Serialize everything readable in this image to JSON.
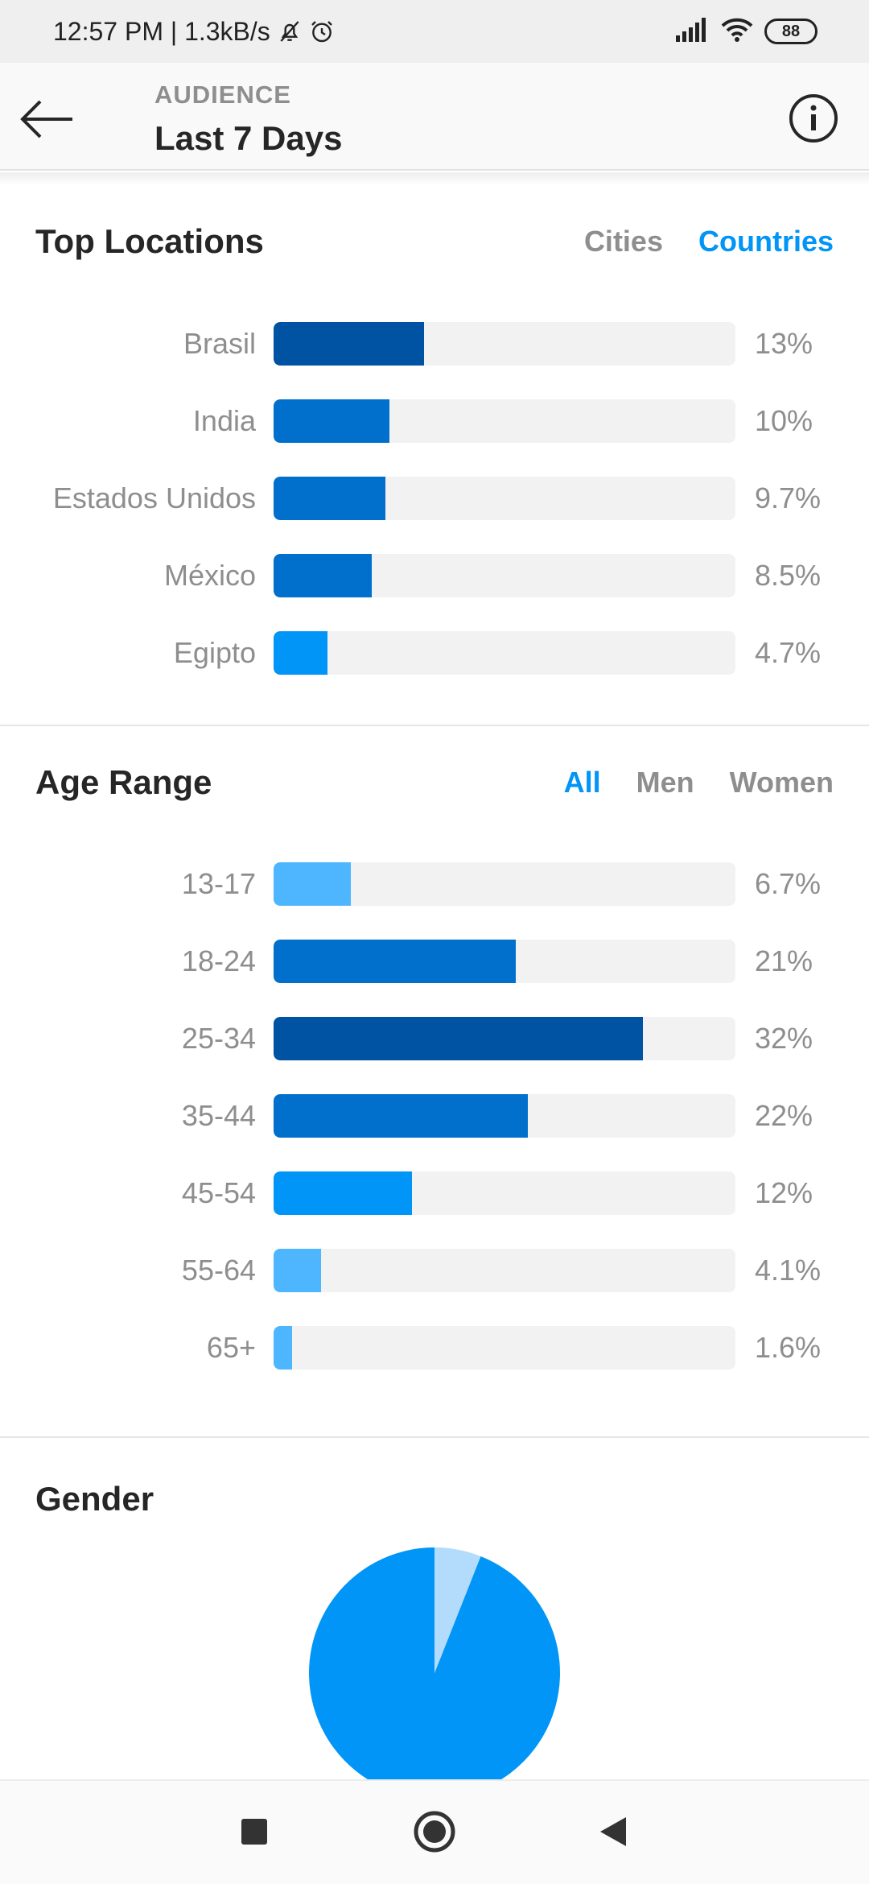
{
  "status_bar": {
    "time_speed": "12:57 PM | 1.3kB/s",
    "battery": "88",
    "icons": [
      "mute-bell-icon",
      "alarm-icon",
      "signal-icon",
      "wifi-icon",
      "battery-icon"
    ]
  },
  "app_bar": {
    "overline": "AUDIENCE",
    "title": "Last 7 Days",
    "back_icon": "arrow-left-icon",
    "info_icon": "info-icon"
  },
  "top_locations": {
    "title": "Top Locations",
    "tabs": [
      {
        "label": "Cities",
        "active": false
      },
      {
        "label": "Countries",
        "active": true
      }
    ]
  },
  "age_range": {
    "title": "Age Range",
    "tabs": [
      {
        "label": "All",
        "active": true
      },
      {
        "label": "Men",
        "active": false
      },
      {
        "label": "Women",
        "active": false
      }
    ]
  },
  "gender": {
    "title": "Gender"
  },
  "nav_bar": {
    "icons": [
      "recents-square-icon",
      "home-circle-icon",
      "back-triangle-icon"
    ]
  },
  "colors": {
    "accent": "#0095f6",
    "bar_darkest": "#0052a3",
    "bar_dark": "#0070cc",
    "bar_mid": "#0095f6",
    "bar_light": "#4db6ff",
    "pie_main": "#0095f6",
    "pie_minor": "#b3dcfc"
  },
  "chart_data": [
    {
      "type": "bar",
      "title": "Top Locations",
      "categories": [
        "Brasil",
        "India",
        "Estados Unidos",
        "México",
        "Egipto"
      ],
      "values": [
        13,
        10,
        9.7,
        8.5,
        4.7
      ],
      "value_labels": [
        "13%",
        "10%",
        "9.7%",
        "8.5%",
        "4.7%"
      ],
      "ylim": [
        0,
        100
      ]
    },
    {
      "type": "bar",
      "title": "Age Range",
      "categories": [
        "13-17",
        "18-24",
        "25-34",
        "35-44",
        "45-54",
        "55-64",
        "65+"
      ],
      "values": [
        6.7,
        21,
        32,
        22,
        12,
        4.1,
        1.6
      ],
      "value_labels": [
        "6.7%",
        "21%",
        "32%",
        "22%",
        "12%",
        "4.1%",
        "1.6%"
      ],
      "ylim": [
        0,
        100
      ]
    },
    {
      "type": "pie",
      "title": "Gender",
      "values": [
        94,
        6
      ]
    }
  ]
}
